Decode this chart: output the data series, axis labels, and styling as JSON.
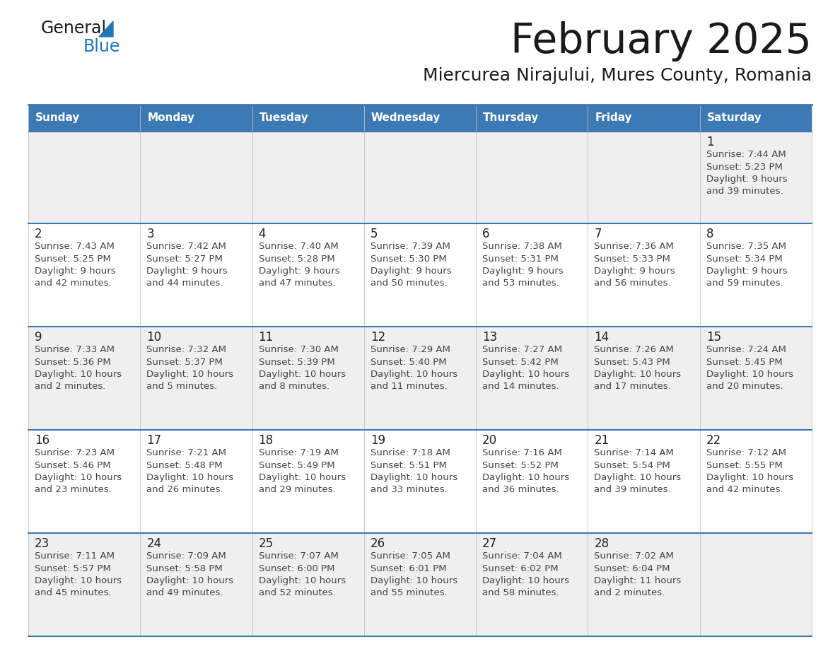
{
  "title": "February 2025",
  "subtitle": "Miercurea Nirajului, Mures County, Romania",
  "days_of_week": [
    "Sunday",
    "Monday",
    "Tuesday",
    "Wednesday",
    "Thursday",
    "Friday",
    "Saturday"
  ],
  "header_bg": "#3d7ab5",
  "header_text": "#ffffff",
  "row_bg_odd": "#efefef",
  "row_bg_even": "#ffffff",
  "cell_border_color": "#3d7ab5",
  "day_number_color": "#222222",
  "info_text_color": "#444444",
  "title_color": "#1a1a1a",
  "subtitle_color": "#1a1a1a",
  "logo_general_color": "#1a1a1a",
  "logo_blue_color": "#2077b8",
  "weeks": [
    [
      {
        "day": null,
        "info": ""
      },
      {
        "day": null,
        "info": ""
      },
      {
        "day": null,
        "info": ""
      },
      {
        "day": null,
        "info": ""
      },
      {
        "day": null,
        "info": ""
      },
      {
        "day": null,
        "info": ""
      },
      {
        "day": 1,
        "info": "Sunrise: 7:44 AM\nSunset: 5:23 PM\nDaylight: 9 hours\nand 39 minutes."
      }
    ],
    [
      {
        "day": 2,
        "info": "Sunrise: 7:43 AM\nSunset: 5:25 PM\nDaylight: 9 hours\nand 42 minutes."
      },
      {
        "day": 3,
        "info": "Sunrise: 7:42 AM\nSunset: 5:27 PM\nDaylight: 9 hours\nand 44 minutes."
      },
      {
        "day": 4,
        "info": "Sunrise: 7:40 AM\nSunset: 5:28 PM\nDaylight: 9 hours\nand 47 minutes."
      },
      {
        "day": 5,
        "info": "Sunrise: 7:39 AM\nSunset: 5:30 PM\nDaylight: 9 hours\nand 50 minutes."
      },
      {
        "day": 6,
        "info": "Sunrise: 7:38 AM\nSunset: 5:31 PM\nDaylight: 9 hours\nand 53 minutes."
      },
      {
        "day": 7,
        "info": "Sunrise: 7:36 AM\nSunset: 5:33 PM\nDaylight: 9 hours\nand 56 minutes."
      },
      {
        "day": 8,
        "info": "Sunrise: 7:35 AM\nSunset: 5:34 PM\nDaylight: 9 hours\nand 59 minutes."
      }
    ],
    [
      {
        "day": 9,
        "info": "Sunrise: 7:33 AM\nSunset: 5:36 PM\nDaylight: 10 hours\nand 2 minutes."
      },
      {
        "day": 10,
        "info": "Sunrise: 7:32 AM\nSunset: 5:37 PM\nDaylight: 10 hours\nand 5 minutes."
      },
      {
        "day": 11,
        "info": "Sunrise: 7:30 AM\nSunset: 5:39 PM\nDaylight: 10 hours\nand 8 minutes."
      },
      {
        "day": 12,
        "info": "Sunrise: 7:29 AM\nSunset: 5:40 PM\nDaylight: 10 hours\nand 11 minutes."
      },
      {
        "day": 13,
        "info": "Sunrise: 7:27 AM\nSunset: 5:42 PM\nDaylight: 10 hours\nand 14 minutes."
      },
      {
        "day": 14,
        "info": "Sunrise: 7:26 AM\nSunset: 5:43 PM\nDaylight: 10 hours\nand 17 minutes."
      },
      {
        "day": 15,
        "info": "Sunrise: 7:24 AM\nSunset: 5:45 PM\nDaylight: 10 hours\nand 20 minutes."
      }
    ],
    [
      {
        "day": 16,
        "info": "Sunrise: 7:23 AM\nSunset: 5:46 PM\nDaylight: 10 hours\nand 23 minutes."
      },
      {
        "day": 17,
        "info": "Sunrise: 7:21 AM\nSunset: 5:48 PM\nDaylight: 10 hours\nand 26 minutes."
      },
      {
        "day": 18,
        "info": "Sunrise: 7:19 AM\nSunset: 5:49 PM\nDaylight: 10 hours\nand 29 minutes."
      },
      {
        "day": 19,
        "info": "Sunrise: 7:18 AM\nSunset: 5:51 PM\nDaylight: 10 hours\nand 33 minutes."
      },
      {
        "day": 20,
        "info": "Sunrise: 7:16 AM\nSunset: 5:52 PM\nDaylight: 10 hours\nand 36 minutes."
      },
      {
        "day": 21,
        "info": "Sunrise: 7:14 AM\nSunset: 5:54 PM\nDaylight: 10 hours\nand 39 minutes."
      },
      {
        "day": 22,
        "info": "Sunrise: 7:12 AM\nSunset: 5:55 PM\nDaylight: 10 hours\nand 42 minutes."
      }
    ],
    [
      {
        "day": 23,
        "info": "Sunrise: 7:11 AM\nSunset: 5:57 PM\nDaylight: 10 hours\nand 45 minutes."
      },
      {
        "day": 24,
        "info": "Sunrise: 7:09 AM\nSunset: 5:58 PM\nDaylight: 10 hours\nand 49 minutes."
      },
      {
        "day": 25,
        "info": "Sunrise: 7:07 AM\nSunset: 6:00 PM\nDaylight: 10 hours\nand 52 minutes."
      },
      {
        "day": 26,
        "info": "Sunrise: 7:05 AM\nSunset: 6:01 PM\nDaylight: 10 hours\nand 55 minutes."
      },
      {
        "day": 27,
        "info": "Sunrise: 7:04 AM\nSunset: 6:02 PM\nDaylight: 10 hours\nand 58 minutes."
      },
      {
        "day": 28,
        "info": "Sunrise: 7:02 AM\nSunset: 6:04 PM\nDaylight: 11 hours\nand 2 minutes."
      },
      {
        "day": null,
        "info": ""
      }
    ]
  ],
  "fig_width": 11.88,
  "fig_height": 9.18,
  "dpi": 100
}
